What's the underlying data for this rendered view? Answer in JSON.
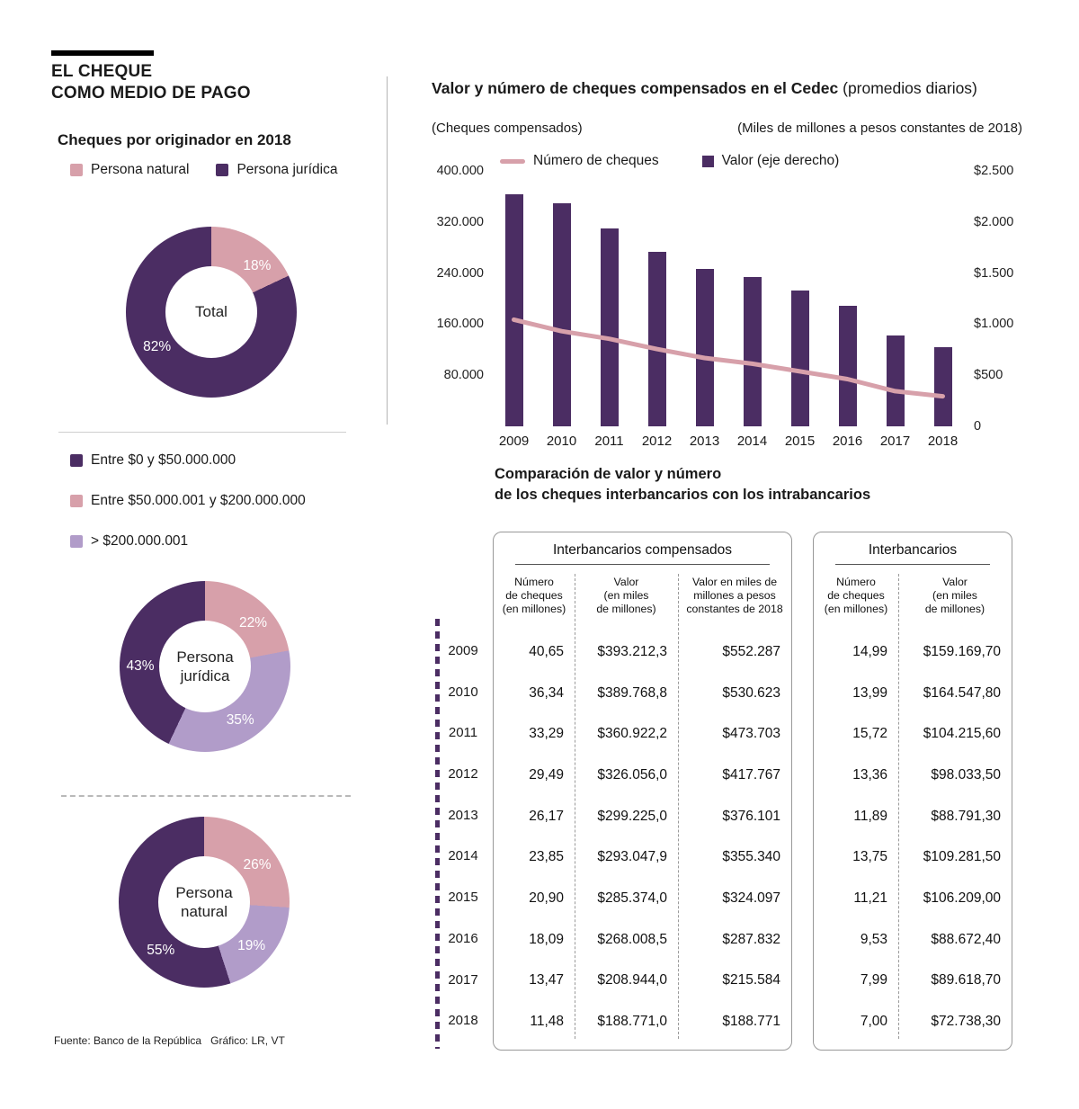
{
  "page": {
    "title_line1": "EL CHEQUE",
    "title_line2": "COMO MEDIO DE PAGO",
    "source": "Fuente: Banco de la República   Gráfico: LR, VT"
  },
  "colors": {
    "purple": "#4b2d63",
    "pink": "#d7a0aa",
    "lilac": "#b19cc9"
  },
  "left_panel": {
    "subtitle": "Cheques por originador en 2018",
    "originator_legend": [
      {
        "label": "Persona natural",
        "color": "#d7a0aa"
      },
      {
        "label": "Persona jurídica",
        "color": "#4b2d63"
      }
    ],
    "range_legend": [
      {
        "label": "Entre $0 y $50.000.000",
        "color": "#4b2d63"
      },
      {
        "label": "Entre $50.000.001 y $200.000.000",
        "color": "#d7a0aa"
      },
      {
        "label": "> $200.000.001",
        "color": "#b19cc9"
      }
    ]
  },
  "right_panel": {
    "chart_title_bold": "Valor y número de cheques compensados en el Cedec",
    "chart_title_normal": " (promedios diarios)",
    "chart_subtitle_left": "(Cheques compensados)",
    "chart_subtitle_right": "(Miles de millones a pesos constantes de 2018)",
    "legend": [
      {
        "label": "Número de cheques",
        "color": "#d7a0aa",
        "swatch": "line"
      },
      {
        "label": "Valor (eje derecho)",
        "color": "#4b2d63",
        "swatch": "square"
      }
    ],
    "comparison_title_line1": "Comparación de valor y número",
    "comparison_title_line2": "de los cheques interbancarios con los intrabancarios"
  },
  "chart_data": [
    {
      "id": "donut_total",
      "type": "pie",
      "title": "Total",
      "slices": [
        {
          "label": "Persona natural",
          "value": 18,
          "color": "#d7a0aa",
          "label_angle": 45
        },
        {
          "label": "Persona jurídica",
          "value": 82,
          "color": "#4b2d63",
          "label_angle": 237
        }
      ]
    },
    {
      "id": "donut_juridica",
      "type": "pie",
      "title": "Persona jurídica",
      "slices": [
        {
          "label": "Entre $50.000.001 y $200.000.000",
          "value": 22,
          "color": "#d7a0aa",
          "label_angle": 48
        },
        {
          "label": "> $200.000.001",
          "value": 35,
          "color": "#b19cc9",
          "label_angle": 147
        },
        {
          "label": "Entre $0 y $50.000.000",
          "value": 43,
          "color": "#4b2d63",
          "label_angle": 270
        }
      ]
    },
    {
      "id": "donut_natural",
      "type": "pie",
      "title": "Persona natural",
      "slices": [
        {
          "label": "Entre $50.000.001 y $200.000.000",
          "value": 26,
          "color": "#d7a0aa",
          "label_angle": 55
        },
        {
          "label": "> $200.000.001",
          "value": 19,
          "color": "#b19cc9",
          "label_angle": 133
        },
        {
          "label": "Entre $0 y $50.000.000",
          "value": 55,
          "color": "#4b2d63",
          "label_angle": 222
        }
      ]
    },
    {
      "id": "cedec_chart",
      "type": "bar",
      "title": "Valor y número de cheques compensados en el Cedec (promedios diarios)",
      "categories": [
        "2009",
        "2010",
        "2011",
        "2012",
        "2013",
        "2014",
        "2015",
        "2016",
        "2017",
        "2018"
      ],
      "series": [
        {
          "name": "Valor (eje derecho)",
          "type": "bar",
          "axis": "right",
          "color": "#4b2d63",
          "values": [
            2270,
            2180,
            1940,
            1710,
            1540,
            1460,
            1330,
            1180,
            885,
            775
          ]
        },
        {
          "name": "Número de cheques",
          "type": "line",
          "axis": "left",
          "color": "#d7a0aa",
          "values": [
            167000,
            149000,
            137000,
            121000,
            107000,
            98000,
            86000,
            74000,
            55000,
            47000
          ]
        }
      ],
      "left_axis": {
        "min": 0,
        "max": 400000,
        "ticks": [
          {
            "value": 400000,
            "label": "400.000"
          },
          {
            "value": 320000,
            "label": "320.000"
          },
          {
            "value": 240000,
            "label": "240.000"
          },
          {
            "value": 160000,
            "label": "160.000"
          },
          {
            "value": 80000,
            "label": "80.000"
          }
        ]
      },
      "right_axis": {
        "min": 0,
        "max": 2500,
        "ticks": [
          {
            "value": 2500,
            "label": "$2.500"
          },
          {
            "value": 2000,
            "label": "$2.000"
          },
          {
            "value": 1500,
            "label": "$1.500"
          },
          {
            "value": 1000,
            "label": "$1.000"
          },
          {
            "value": 500,
            "label": "$500"
          },
          {
            "value": 0,
            "label": "0"
          }
        ]
      },
      "grid": false,
      "legend_position": "top"
    },
    {
      "id": "comparison_table",
      "type": "table",
      "years": [
        "2009",
        "2010",
        "2011",
        "2012",
        "2013",
        "2014",
        "2015",
        "2016",
        "2017",
        "2018"
      ],
      "tables": [
        {
          "title": "Interbancarios compensados",
          "columns": [
            "Número\nde cheques\n(en millones)",
            "Valor\n(en miles\nde millones)",
            "Valor en miles de\nmillones a pesos\nconstantes de 2018"
          ],
          "rows": [
            [
              "40,65",
              "$393.212,3",
              "$552.287"
            ],
            [
              "36,34",
              "$389.768,8",
              "$530.623"
            ],
            [
              "33,29",
              "$360.922,2",
              "$473.703"
            ],
            [
              "29,49",
              "$326.056,0",
              "$417.767"
            ],
            [
              "26,17",
              "$299.225,0",
              "$376.101"
            ],
            [
              "23,85",
              "$293.047,9",
              "$355.340"
            ],
            [
              "20,90",
              "$285.374,0",
              "$324.097"
            ],
            [
              "18,09",
              "$268.008,5",
              "$287.832"
            ],
            [
              "13,47",
              "$208.944,0",
              "$215.584"
            ],
            [
              "11,48",
              "$188.771,0",
              "$188.771"
            ]
          ]
        },
        {
          "title": "Interbancarios",
          "columns": [
            "Número\nde cheques\n(en millones)",
            "Valor\n(en miles\nde millones)"
          ],
          "rows": [
            [
              "14,99",
              "$159.169,70"
            ],
            [
              "13,99",
              "$164.547,80"
            ],
            [
              "15,72",
              "$104.215,60"
            ],
            [
              "13,36",
              "$98.033,50"
            ],
            [
              "11,89",
              "$88.791,30"
            ],
            [
              "13,75",
              "$109.281,50"
            ],
            [
              "11,21",
              "$106.209,00"
            ],
            [
              "9,53",
              "$88.672,40"
            ],
            [
              "7,99",
              "$89.618,70"
            ],
            [
              "7,00",
              "$72.738,30"
            ]
          ]
        }
      ]
    }
  ]
}
